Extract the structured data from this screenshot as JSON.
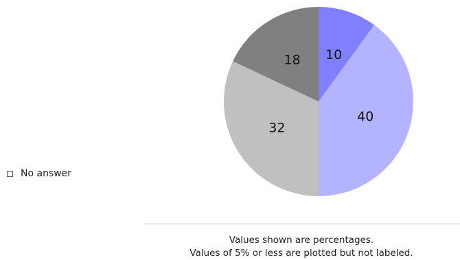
{
  "chart_data": {
    "type": "pie",
    "slices": [
      {
        "value": 10,
        "label": "10",
        "color": "#8080ff"
      },
      {
        "value": 40,
        "label": "40",
        "color": "#b3b3ff"
      },
      {
        "value": 32,
        "label": "32",
        "color": "#c0c0c0"
      },
      {
        "value": 18,
        "label": "18",
        "color": "#808080"
      }
    ],
    "legend": [
      {
        "label": "No answer",
        "color": "#ffffff"
      }
    ],
    "legend_position": "left",
    "notes": [
      "Values shown are percentages.",
      "Values of 5% or less are plotted but not labeled."
    ]
  }
}
